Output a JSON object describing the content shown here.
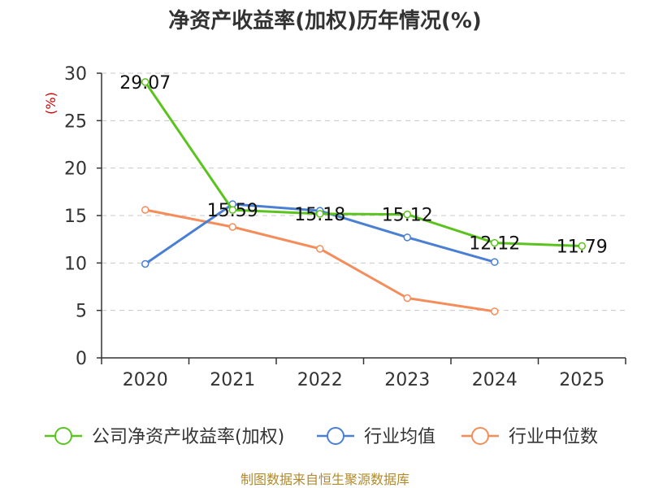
{
  "chart_data": {
    "type": "line",
    "title": "净资产收益率(加权)历年情况(%)",
    "ylabel": "(%)",
    "xlabel": "",
    "categories": [
      "2020",
      "2021",
      "2022",
      "2023",
      "2024",
      "2025"
    ],
    "ylim": [
      0,
      30
    ],
    "yticks": [
      0,
      5,
      10,
      15,
      20,
      25,
      30
    ],
    "grid": true,
    "legend_position": "bottom",
    "series": [
      {
        "name": "公司净资产收益率(加权)",
        "color": "#5bc31e",
        "values": [
          29.07,
          15.59,
          15.18,
          15.12,
          12.12,
          11.79
        ],
        "labels": [
          "29.07",
          "15.59",
          "15.18",
          "15.12",
          "12.12",
          "11.79"
        ]
      },
      {
        "name": "行业均值",
        "color": "#4a7fd4",
        "values": [
          9.9,
          16.2,
          15.5,
          12.7,
          10.1,
          null
        ]
      },
      {
        "name": "行业中位数",
        "color": "#f58c5a",
        "values": [
          15.6,
          13.8,
          11.5,
          6.3,
          4.9,
          null
        ]
      }
    ]
  },
  "footer": {
    "source": "制图数据来自恒生聚源数据库"
  }
}
